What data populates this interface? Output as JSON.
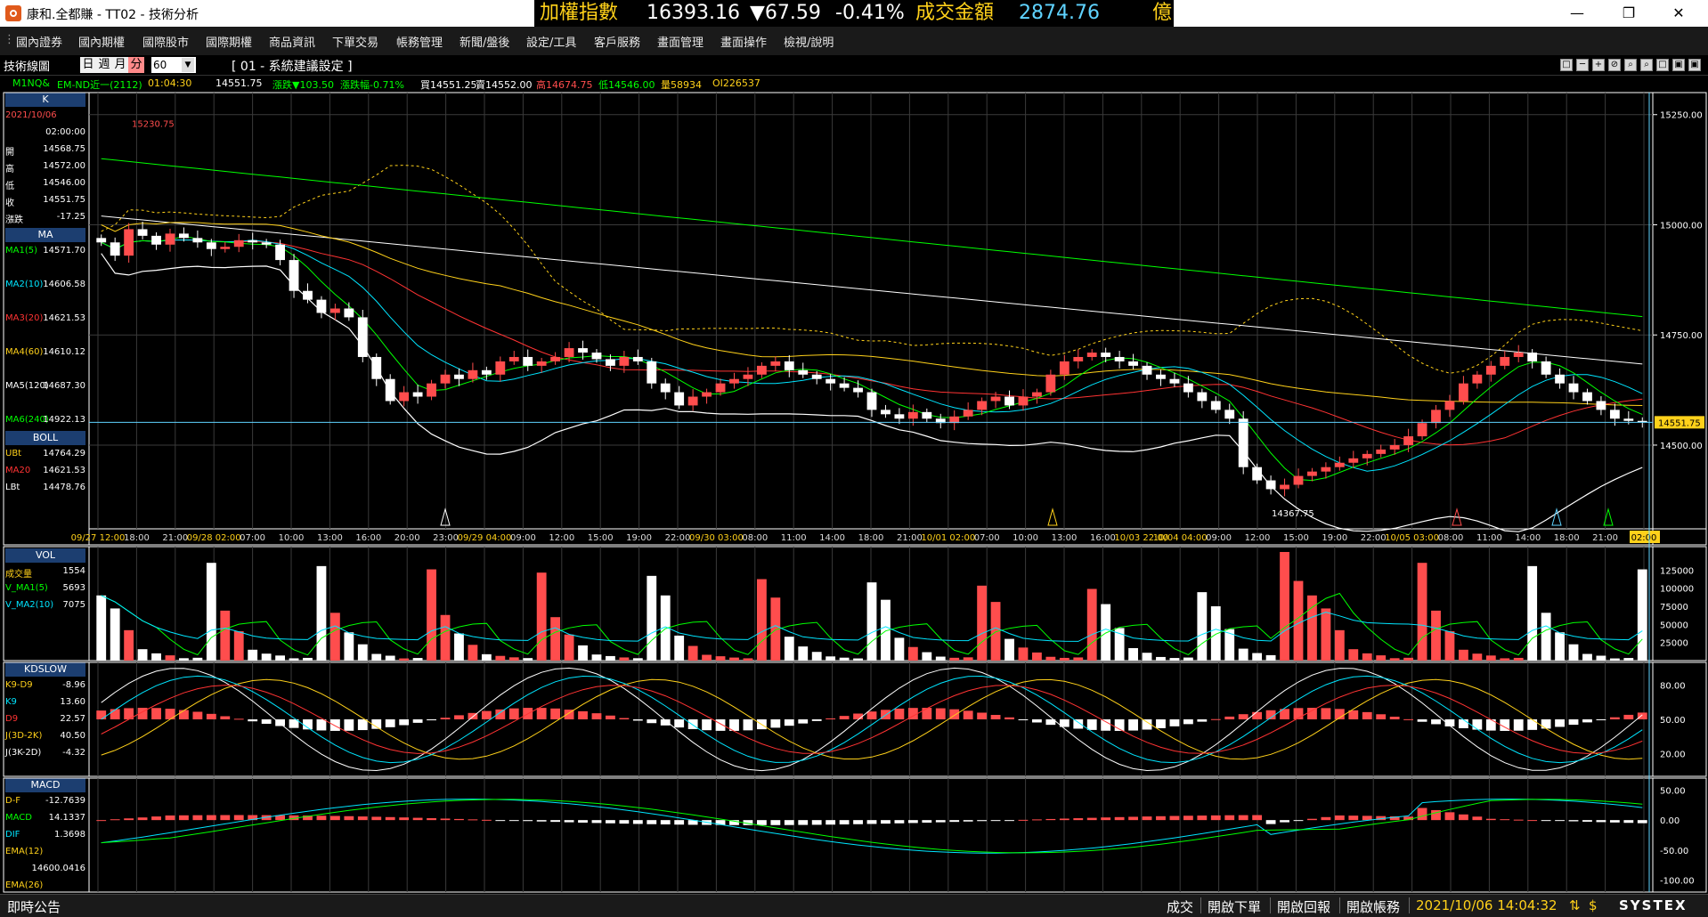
{
  "window": {
    "title": "康和.全都賺 - TT02 - 技術分析",
    "index_name": "加權指數",
    "index_value": "16393.16",
    "index_change": "▼67.59",
    "index_pct": "-0.41%",
    "turnover_label": "成交金額",
    "turnover_value": "2874.76",
    "turnover_unit": "億",
    "minimize": "—",
    "restore": "❐",
    "close": "✕"
  },
  "menu": [
    "國內證券",
    "國內期權",
    "國際股市",
    "國際期權",
    "商品資訊",
    "下單交易",
    "帳務管理",
    "新聞/盤後",
    "設定/工具",
    "客戶服務",
    "畫面管理",
    "畫面操作",
    "檢視/說明"
  ],
  "toolbar": {
    "title": "技術線圖",
    "periods": [
      "日",
      "週",
      "月",
      "分"
    ],
    "active_period": "分",
    "period_value": "60",
    "system_setting": "[ 01 - 系統建議設定 ]",
    "tools": [
      "□",
      "─",
      "+",
      "⊘",
      "⌕",
      "⌕",
      "□",
      "▣",
      "▣",
      "×"
    ]
  },
  "quote": {
    "symbol": "M1NQ&",
    "name": "EM-ND近一(2112)",
    "time": "01:04:30",
    "price": "14551.75",
    "change": "漲跌▼103.50",
    "pct": "漲跌幅-0.71%",
    "bid": "買14551.25",
    "ask": "賣14552.00",
    "high": "高14674.75",
    "low": "低14546.00",
    "volume": "量58934",
    "oi": "OI226537"
  },
  "left_panel": {
    "k_head": "K",
    "date": "2021/10/06",
    "time": "02:00:00",
    "ohlc": [
      {
        "label": "開",
        "value": "14568.75"
      },
      {
        "label": "高",
        "value": "14572.00"
      },
      {
        "label": "低",
        "value": "14546.00"
      },
      {
        "label": "收",
        "value": "14551.75"
      },
      {
        "label": "漲跌",
        "value": "-17.25"
      }
    ],
    "ma_head": "MA",
    "ma": [
      {
        "label": "MA1(5)",
        "value": "14571.70",
        "color": "#00ff00"
      },
      {
        "label": "MA2(10)",
        "value": "14606.58",
        "color": "#00e5ff"
      },
      {
        "label": "MA3(20)",
        "value": "14621.53",
        "color": "#ff3333"
      },
      {
        "label": "MA4(60)",
        "value": "14610.12",
        "color": "#ffd11a"
      },
      {
        "label": "MA5(120)",
        "value": "14687.30",
        "color": "#ffffff"
      },
      {
        "label": "MA6(240)",
        "value": "14922.13",
        "color": "#00ff00"
      }
    ],
    "boll_head": "BOLL",
    "boll": [
      {
        "label": "UBt",
        "value": "14764.29",
        "color": "#ffd11a"
      },
      {
        "label": "MA20",
        "value": "14621.53",
        "color": "#ff3333"
      },
      {
        "label": "LBt",
        "value": "14478.76",
        "color": "#ffffff"
      }
    ],
    "vol_head": "VOL",
    "vol": [
      {
        "label": "成交量",
        "value": "1554",
        "color": "#ffd11a"
      },
      {
        "label": "V_MA1(5)",
        "value": "5693",
        "color": "#00ff00"
      },
      {
        "label": "V_MA2(10)",
        "value": "7075",
        "color": "#00e5ff"
      }
    ],
    "kd_head": "KDSLOW",
    "kd": [
      {
        "label": "K9-D9",
        "value": "-8.96",
        "color": "#ffd11a"
      },
      {
        "label": "K9",
        "value": "13.60",
        "color": "#00e5ff"
      },
      {
        "label": "D9",
        "value": "22.57",
        "color": "#ff3333"
      },
      {
        "label": "J(3D-2K)",
        "value": "40.50",
        "color": "#ffd11a"
      },
      {
        "label": "J(3K-2D)",
        "value": "-4.32",
        "color": "#ffffff"
      }
    ],
    "macd_head": "MACD",
    "macd": [
      {
        "label": "D-F",
        "value": "-12.7639",
        "color": "#ffd11a"
      },
      {
        "label": "MACD",
        "value": "14.1337",
        "color": "#00ff00"
      },
      {
        "label": "DIF",
        "value": "1.3698",
        "color": "#00e5ff"
      },
      {
        "label": "EMA(12)",
        "value": "",
        "color": "#ffd11a"
      },
      {
        "label": "",
        "value": "14600.0416",
        "color": "#ffffff"
      },
      {
        "label": "EMA(26)",
        "value": "",
        "color": "#ffd11a"
      }
    ]
  },
  "chart_data": {
    "type": "candlestick",
    "symbol": "M1NQ&",
    "interval_minutes": 60,
    "price_axis": {
      "ticks": [
        "15250.00",
        "15000.00",
        "14750.00",
        "14500.00"
      ],
      "range": [
        14310,
        15300
      ]
    },
    "last_price_label": "14551.75",
    "annotations": [
      {
        "text": "15230.75"
      },
      {
        "text": "14367.75"
      }
    ],
    "time_labels": [
      "09/27 12:00",
      "18:00",
      "21:00",
      "09/28 02:00",
      "07:00",
      "10:00",
      "13:00",
      "16:00",
      "20:00",
      "23:00",
      "09/29 04:00",
      "09:00",
      "12:00",
      "15:00",
      "19:00",
      "22:00",
      "09/30 03:00",
      "08:00",
      "11:00",
      "14:00",
      "18:00",
      "21:00",
      "10/01 02:00",
      "07:00",
      "10:00",
      "13:00",
      "16:00",
      "10/03 22:00",
      "10/04 04:00",
      "09:00",
      "12:00",
      "15:00",
      "19:00",
      "22:00",
      "10/05 03:00",
      "08:00",
      "11:00",
      "14:00",
      "18:00",
      "21:00",
      "02:00"
    ],
    "date_labels": [
      "09/27",
      "09/28",
      "09/29",
      "09/30",
      "10/01",
      "10/03",
      "10/04",
      "10/05"
    ],
    "vol_axis": {
      "ticks": [
        "125000",
        "100000",
        "75000",
        "50000",
        "25000"
      ],
      "max": 150000
    },
    "kd_axis": {
      "ticks": [
        "80.00",
        "50.00",
        "20.00"
      ],
      "range": [
        0,
        100
      ]
    },
    "macd_axis": {
      "ticks": [
        "50.00",
        "0.00",
        "-50.00",
        "-100.00"
      ],
      "range": [
        -120,
        70
      ]
    },
    "candles_close": [
      14960,
      14930,
      14990,
      14975,
      14955,
      14980,
      14970,
      14960,
      14945,
      14950,
      14965,
      14960,
      14955,
      14920,
      14850,
      14830,
      14800,
      14810,
      14790,
      14700,
      14650,
      14600,
      14620,
      14610,
      14640,
      14660,
      14650,
      14670,
      14660,
      14690,
      14700,
      14680,
      14690,
      14700,
      14720,
      14710,
      14695,
      14680,
      14700,
      14690,
      14640,
      14620,
      14590,
      14610,
      14620,
      14640,
      14650,
      14660,
      14680,
      14690,
      14670,
      14660,
      14650,
      14640,
      14630,
      14620,
      14580,
      14570,
      14560,
      14575,
      14560,
      14550,
      14565,
      14580,
      14600,
      14610,
      14590,
      14610,
      14620,
      14660,
      14690,
      14700,
      14710,
      14700,
      14690,
      14680,
      14660,
      14650,
      14640,
      14620,
      14600,
      14580,
      14560,
      14450,
      14420,
      14400,
      14410,
      14430,
      14440,
      14450,
      14460,
      14470,
      14480,
      14490,
      14500,
      14520,
      14550,
      14580,
      14600,
      14640,
      14660,
      14680,
      14700,
      14710,
      14690,
      14660,
      14640,
      14620,
      14600,
      14580,
      14560,
      14555,
      14551.75
    ],
    "volume_max_label": "125000",
    "kd_k_label": "K9",
    "macd_label": "MACD"
  },
  "status": {
    "notice": "即時公告",
    "buttons": [
      "成交",
      "開啟下單",
      "開啟回報",
      "開啟帳務"
    ],
    "datetime": "2021/10/06 14:04:32",
    "icons": [
      "⇅",
      "$"
    ],
    "brand": "SYSTEX"
  },
  "colors": {
    "up": "#ff4d4d",
    "down": "#ffffff",
    "ma1": "#00ff00",
    "ma2": "#00e5ff",
    "ma3": "#ff3333",
    "ma4": "#ffd11a",
    "ma5": "#ffffff",
    "ma6": "#00ff00",
    "header_blue": "#1c3e70",
    "accent_yellow": "#ffd11a"
  }
}
